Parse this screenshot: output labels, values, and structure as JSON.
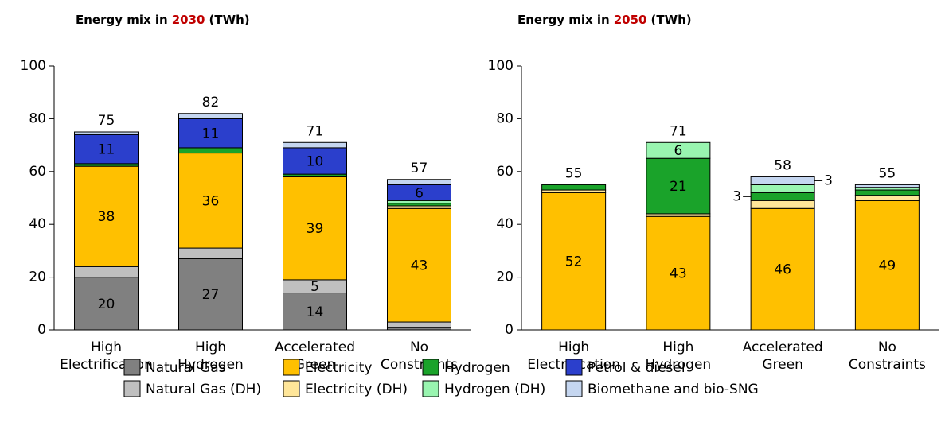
{
  "chart_data": [
    {
      "type": "stacked_bar",
      "title_parts": [
        "Energy mix in",
        "2030",
        "(TWh)"
      ],
      "categories": [
        "High Electrification",
        "High Hydrogen",
        "Accelerated Green",
        "No Constraints"
      ],
      "totals": [
        75,
        82,
        71,
        57
      ],
      "ylim": [
        0,
        100
      ],
      "yticks": [
        0,
        20,
        40,
        60,
        80,
        100
      ],
      "series": [
        {
          "name": "Natural Gas",
          "color": "#808080",
          "values": [
            20,
            27,
            14,
            1
          ],
          "value_labels": [
            "20",
            "27",
            "14",
            null
          ]
        },
        {
          "name": "Natural Gas (DH)",
          "color": "#bfbfbf",
          "values": [
            4,
            4,
            5,
            2
          ],
          "value_labels": [
            null,
            null,
            "5",
            null
          ]
        },
        {
          "name": "Electricity",
          "color": "#ffc000",
          "values": [
            38,
            36,
            39,
            43
          ],
          "value_labels": [
            "38",
            "36",
            "39",
            "43"
          ]
        },
        {
          "name": "Electricity (DH)",
          "color": "#ffe699",
          "values": [
            0,
            0,
            0,
            1
          ],
          "value_labels": [
            null,
            null,
            null,
            null
          ]
        },
        {
          "name": "Hydrogen",
          "color": "#1aa32a",
          "values": [
            1,
            2,
            1,
            1
          ],
          "value_labels": [
            null,
            null,
            null,
            null
          ]
        },
        {
          "name": "Hydrogen (DH)",
          "color": "#99f5b0",
          "values": [
            0,
            0,
            0,
            1
          ],
          "value_labels": [
            null,
            null,
            null,
            null
          ]
        },
        {
          "name": "Petrol & diesel",
          "color": "#2b3fcc",
          "values": [
            11,
            11,
            10,
            6
          ],
          "value_labels": [
            "11",
            "11",
            "10",
            "6"
          ]
        },
        {
          "name": "Biomethane and bio-SNG",
          "color": "#c5d6f0",
          "values": [
            1,
            2,
            2,
            2
          ],
          "value_labels": [
            null,
            null,
            null,
            null
          ]
        }
      ]
    },
    {
      "type": "stacked_bar",
      "title_parts": [
        "Energy mix in",
        "2050",
        "(TWh)"
      ],
      "categories": [
        "High Electrification",
        "High Hydrogen",
        "Accelerated Green",
        "No Constraints"
      ],
      "totals": [
        55,
        71,
        58,
        55
      ],
      "ylim": [
        0,
        100
      ],
      "yticks": [
        0,
        20,
        40,
        60,
        80,
        100
      ],
      "series": [
        {
          "name": "Natural Gas",
          "color": "#808080",
          "values": [
            0,
            0,
            0,
            0
          ],
          "value_labels": [
            null,
            null,
            null,
            null
          ]
        },
        {
          "name": "Natural Gas (DH)",
          "color": "#bfbfbf",
          "values": [
            0,
            0,
            0,
            0
          ],
          "value_labels": [
            null,
            null,
            null,
            null
          ]
        },
        {
          "name": "Electricity",
          "color": "#ffc000",
          "values": [
            52,
            43,
            46,
            49
          ],
          "value_labels": [
            "52",
            "43",
            "46",
            "49"
          ]
        },
        {
          "name": "Electricity (DH)",
          "color": "#ffe699",
          "values": [
            1,
            1,
            3,
            2
          ],
          "value_labels": [
            null,
            null,
            null,
            null
          ]
        },
        {
          "name": "Hydrogen",
          "color": "#1aa32a",
          "values": [
            2,
            21,
            3,
            2
          ],
          "value_labels": [
            null,
            "21",
            "3",
            null
          ]
        },
        {
          "name": "Hydrogen (DH)",
          "color": "#99f5b0",
          "values": [
            0,
            6,
            3,
            1
          ],
          "value_labels": [
            null,
            "6",
            null,
            null
          ]
        },
        {
          "name": "Petrol & diesel",
          "color": "#2b3fcc",
          "values": [
            0,
            0,
            0,
            0
          ],
          "value_labels": [
            null,
            null,
            null,
            null
          ]
        },
        {
          "name": "Biomethane and bio-SNG",
          "color": "#c5d6f0",
          "values": [
            0,
            0,
            3,
            1
          ],
          "value_labels": [
            null,
            null,
            "3",
            null
          ]
        }
      ]
    }
  ]
}
